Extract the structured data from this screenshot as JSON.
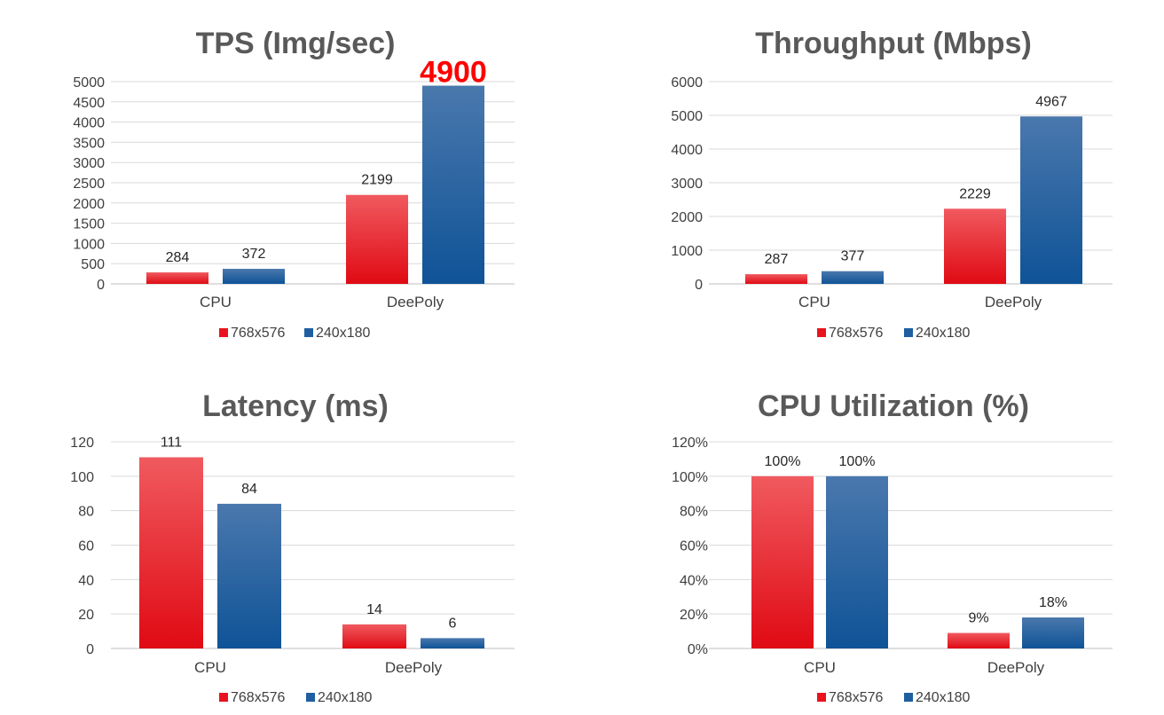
{
  "colors": {
    "series_red": "#e8141e",
    "series_blue": "#1f5fa0"
  },
  "chart_data": [
    {
      "type": "bar",
      "title": "TPS (Img/sec)",
      "categories": [
        "CPU",
        "DeePoly"
      ],
      "series": [
        {
          "name": "768x576",
          "values": [
            284,
            2199
          ],
          "labels": [
            "284",
            "2199"
          ]
        },
        {
          "name": "240x180",
          "values": [
            372,
            4900
          ],
          "labels": [
            "372",
            "4900"
          ]
        }
      ],
      "ylim": [
        0,
        5000
      ],
      "yticks": [
        0,
        500,
        1000,
        1500,
        2000,
        2500,
        3000,
        3500,
        4000,
        4500,
        5000
      ],
      "ytick_labels": [
        "0",
        "500",
        "1000",
        "1500",
        "2000",
        "2500",
        "3000",
        "3500",
        "4000",
        "4500",
        "5000"
      ],
      "highlight": {
        "series": 1,
        "point": 1
      },
      "grid": true,
      "legend": "bottom"
    },
    {
      "type": "bar",
      "title": "Throughput (Mbps)",
      "categories": [
        "CPU",
        "DeePoly"
      ],
      "series": [
        {
          "name": "768x576",
          "values": [
            287,
            2229
          ],
          "labels": [
            "287",
            "2229"
          ]
        },
        {
          "name": "240x180",
          "values": [
            377,
            4967
          ],
          "labels": [
            "377",
            "4967"
          ]
        }
      ],
      "ylim": [
        0,
        6000
      ],
      "yticks": [
        0,
        1000,
        2000,
        3000,
        4000,
        5000,
        6000
      ],
      "ytick_labels": [
        "0",
        "1000",
        "2000",
        "3000",
        "4000",
        "5000",
        "6000"
      ],
      "grid": true,
      "legend": "bottom"
    },
    {
      "type": "bar",
      "title": "Latency (ms)",
      "categories": [
        "CPU",
        "DeePoly"
      ],
      "series": [
        {
          "name": "768x576",
          "values": [
            111,
            14
          ],
          "labels": [
            "111",
            "14"
          ]
        },
        {
          "name": "240x180",
          "values": [
            84,
            6
          ],
          "labels": [
            "84",
            "6"
          ]
        }
      ],
      "ylim": [
        0,
        120
      ],
      "yticks": [
        0,
        20,
        40,
        60,
        80,
        100,
        120
      ],
      "ytick_labels": [
        "0",
        "20",
        "40",
        "60",
        "80",
        "100",
        "120"
      ],
      "grid": true,
      "legend": "bottom"
    },
    {
      "type": "bar",
      "title": "CPU Utilization (%)",
      "categories": [
        "CPU",
        "DeePoly"
      ],
      "series": [
        {
          "name": "768x576",
          "values": [
            100,
            9
          ],
          "labels": [
            "100%",
            "9%"
          ]
        },
        {
          "name": "240x180",
          "values": [
            100,
            18
          ],
          "labels": [
            "100%",
            "18%"
          ]
        }
      ],
      "ylim": [
        0,
        120
      ],
      "yticks": [
        0,
        20,
        40,
        60,
        80,
        100,
        120
      ],
      "ytick_labels": [
        "0%",
        "20%",
        "40%",
        "60%",
        "80%",
        "100%",
        "120%"
      ],
      "grid": true,
      "legend": "bottom"
    }
  ]
}
